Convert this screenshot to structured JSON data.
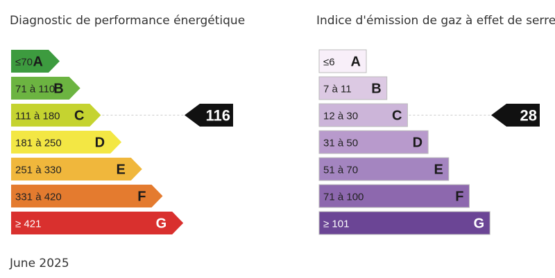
{
  "energy": {
    "title": "Diagnostic de performance énergétique",
    "classes": [
      {
        "range": "≤70",
        "letter": "A",
        "color": "#3d9b3f"
      },
      {
        "range": "71 à 110",
        "letter": "B",
        "color": "#6cb441"
      },
      {
        "range": "111 à 180",
        "letter": "C",
        "color": "#c5d330"
      },
      {
        "range": "181 à 250",
        "letter": "D",
        "color": "#f3e744"
      },
      {
        "range": "251 à 330",
        "letter": "E",
        "color": "#f0b73c"
      },
      {
        "range": "331 à 420",
        "letter": "F",
        "color": "#e47b2f"
      },
      {
        "range": "≥ 421",
        "letter": "G",
        "color": "#d9302e"
      }
    ],
    "value": 116
  },
  "gas": {
    "title": "Indice d'émission de gaz à effet de serre",
    "classes": [
      {
        "range": "≤6",
        "letter": "A",
        "color": "#f8eff9"
      },
      {
        "range": "7 à 11",
        "letter": "B",
        "color": "#dcc9e3"
      },
      {
        "range": "12 à 30",
        "letter": "C",
        "color": "#ccb5d9"
      },
      {
        "range": "31 à 50",
        "letter": "D",
        "color": "#b89acc"
      },
      {
        "range": "51 à 70",
        "letter": "E",
        "color": "#a485c0"
      },
      {
        "range": "71 à 100",
        "letter": "F",
        "color": "#8d68ae"
      },
      {
        "range": "≥ 101",
        "letter": "G",
        "color": "#6b4595"
      }
    ],
    "value": 28
  },
  "date": "June 2025"
}
